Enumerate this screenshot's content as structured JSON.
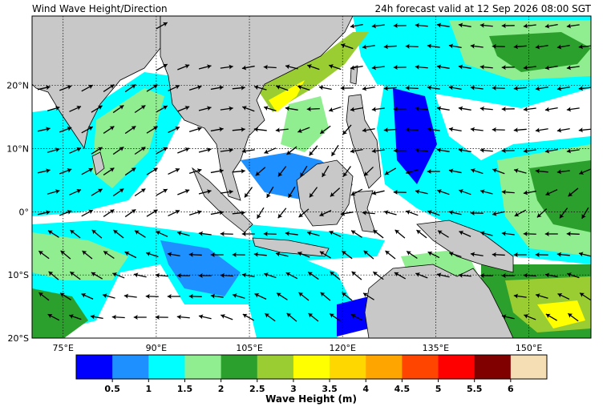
{
  "title": "Wind Wave Height/Direction",
  "valid": "24h forecast valid at 12 Sep 2026 08:00 SGT",
  "map": {
    "lonlim": [
      70,
      160
    ],
    "latlim": [
      -20,
      31
    ],
    "lonticks": [
      {
        "value": 75,
        "label": "75°E"
      },
      {
        "value": 90,
        "label": "90°E"
      },
      {
        "value": 105,
        "label": "105°E"
      },
      {
        "value": 120,
        "label": "120°E"
      },
      {
        "value": 135,
        "label": "135°E"
      },
      {
        "value": 150,
        "label": "150°E"
      }
    ],
    "latticks": [
      {
        "value": 20,
        "label": "20°N"
      },
      {
        "value": 10,
        "label": "10°N"
      },
      {
        "value": 0,
        "label": "0°"
      },
      {
        "value": -10,
        "label": "10°S"
      },
      {
        "value": -20,
        "label": "20°S"
      }
    ]
  },
  "colorbar": {
    "label": "Wave Height (m)",
    "lim": [
      0,
      6.5
    ],
    "colors": [
      "#0000ff",
      "#1e90ff",
      "#00ffff",
      "#90ee90",
      "#2ca02c",
      "#9acd32",
      "#ffff00",
      "#ffd700",
      "#ffa500",
      "#ff4500",
      "#ff0000",
      "#800000",
      "#f5deb3"
    ],
    "ticks": [
      0.5,
      1,
      1.5,
      2,
      2.5,
      3,
      3.5,
      4,
      4.5,
      5,
      5.5,
      6
    ]
  }
}
